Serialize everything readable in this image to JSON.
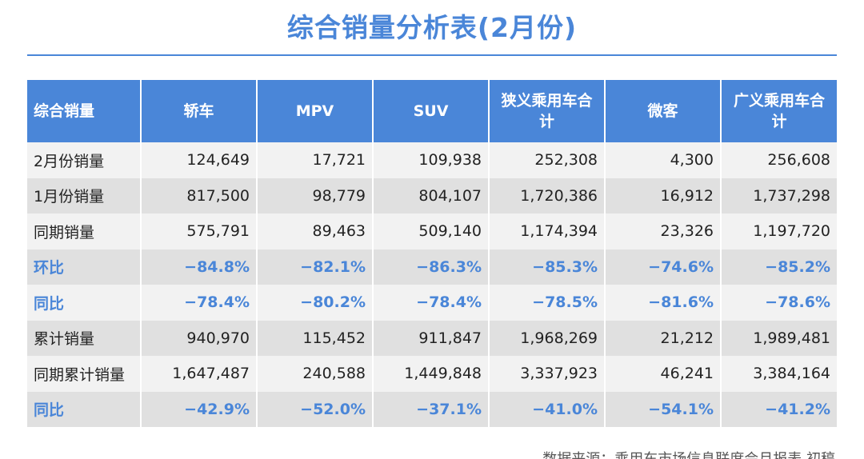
{
  "title": "综合销量分析表(2月份)",
  "table": {
    "headers": [
      "综合销量",
      "轿车",
      "MPV",
      "SUV",
      "狭义乘用车合计",
      "微客",
      "广义乘用车合计"
    ],
    "rows": [
      {
        "label": "2月份销量",
        "values": [
          "124,649",
          "17,721",
          "109,938",
          "252,308",
          "4,300",
          "256,608"
        ],
        "kind": "num"
      },
      {
        "label": "1月份销量",
        "values": [
          "817,500",
          "98,779",
          "804,107",
          "1,720,386",
          "16,912",
          "1,737,298"
        ],
        "kind": "num"
      },
      {
        "label": "同期销量",
        "values": [
          "575,791",
          "89,463",
          "509,140",
          "1,174,394",
          "23,326",
          "1,197,720"
        ],
        "kind": "num"
      },
      {
        "label": "环比",
        "values": [
          "−84.8%",
          "−82.1%",
          "−86.3%",
          "−85.3%",
          "−74.6%",
          "−85.2%"
        ],
        "kind": "pct"
      },
      {
        "label": "同比",
        "values": [
          "−78.4%",
          "−80.2%",
          "−78.4%",
          "−78.5%",
          "−81.6%",
          "−78.6%"
        ],
        "kind": "pct"
      },
      {
        "label": "累计销量",
        "values": [
          "940,970",
          "115,452",
          "911,847",
          "1,968,269",
          "21,212",
          "1,989,481"
        ],
        "kind": "num"
      },
      {
        "label": "同期累计销量",
        "values": [
          "1,647,487",
          "240,588",
          "1,449,848",
          "3,337,923",
          "46,241",
          "3,384,164"
        ],
        "kind": "num"
      },
      {
        "label": "同比",
        "values": [
          "−42.9%",
          "−52.0%",
          "−37.1%",
          "−41.0%",
          "−54.1%",
          "−41.2%"
        ],
        "kind": "pct"
      }
    ]
  },
  "source": "数据来源：乘用车市场信息联席会月报表 初稿",
  "colors": {
    "accent": "#4a86d8",
    "row_light": "#f2f2f2",
    "row_dark": "#e0e0e0",
    "text": "#222222"
  }
}
